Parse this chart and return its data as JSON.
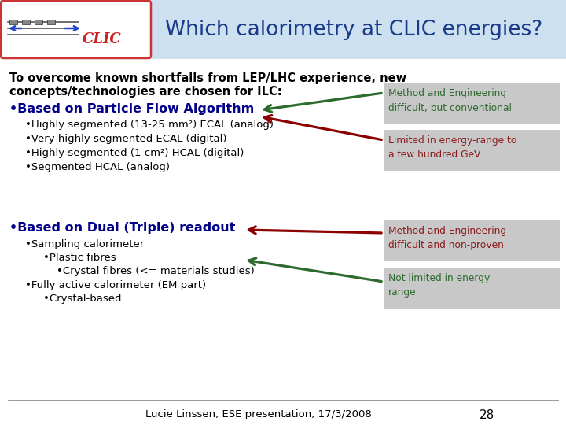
{
  "title": "Which calorimetry at CLIC energies?",
  "title_color": "#1a3a8a",
  "header_bg": "#cce0f0",
  "background": "#ffffff",
  "intro_line1": "To overcome known shortfalls from LEP/LHC experience, new",
  "intro_line2": "concepts/technologies are chosen for ILC:",
  "bullet1_header": "•Based on Particle Flow Algorithm",
  "bullet1_sub": [
    "•Highly segmented (13-25 mm²) ECAL (analog)",
    "•Very highly segmented ECAL (digital)",
    "•Highly segmented (1 cm²) HCAL (digital)",
    "•Segmented HCAL (analog)"
  ],
  "bullet2_header": "•Based on Dual (Triple) readout",
  "bullet2_sub": [
    "•Sampling calorimeter",
    "•Plastic fibres",
    "•Crystal fibres (<= materials studies)",
    "•Fully active calorimeter (EM part)",
    "•Crystal-based"
  ],
  "box1_text": "Method and Engineering\ndifficult, but conventional",
  "box2_text": "Limited in energy-range to\na few hundred GeV",
  "box3_text": "Method and Engineering\ndifficult and non-proven",
  "box4_text": "Not limited in energy\nrange",
  "box_bg": "#c8c8c8",
  "box1_color": "#2d6a2d",
  "box2_color": "#8b1a1a",
  "box3_color": "#8b1a1a",
  "box4_color": "#2d6a2d",
  "arrow_green": "#2d6a2d",
  "arrow_dark_red": "#8b0000",
  "footer_text": "Lucie Linssen, ESE presentation, 17/3/2008",
  "page_num": "28",
  "bullet_header_color": "#00008b",
  "main_text_color": "#000000"
}
